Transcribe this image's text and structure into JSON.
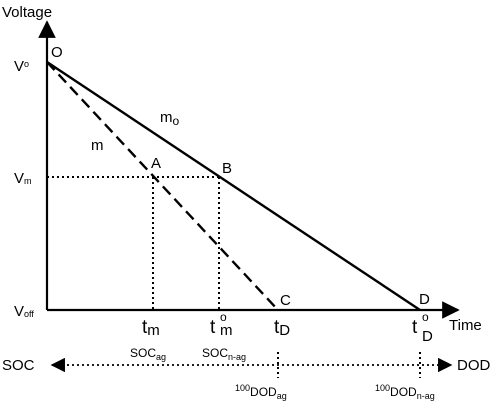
{
  "axes": {
    "y_label": "Voltage",
    "x_label": "Time"
  },
  "points": {
    "O": "O",
    "A": "A",
    "B": "B",
    "C": "C",
    "D": "D"
  },
  "y_ticks": {
    "vo_main": "V",
    "vo_sub": "o",
    "vm_main": "V",
    "vm_sub": "m",
    "voff_main": "V",
    "voff_sub": "off"
  },
  "slopes": {
    "mo_main": "m",
    "mo_sub": "o",
    "m": "m"
  },
  "x_ticks": {
    "tm_main": "t",
    "tm_sub": "m",
    "tmo_main": "t",
    "tmo_sup": "o",
    "tmo_sub": "m",
    "tD_main": "t",
    "tD_sub": "D",
    "tDo_main": "t",
    "tDo_sup": "o",
    "tDo_sub": "D"
  },
  "soc_labels": {
    "soc_ag_main": "SOC",
    "soc_ag_sub": "ag",
    "soc_nag_main": "SOC",
    "soc_nag_sub": "n-ag"
  },
  "bottom_axis": {
    "left": "SOC",
    "right": "DOD",
    "dod_ag_pre": "100",
    "dod_ag_main": "DOD",
    "dod_ag_sub": "ag",
    "dod_nag_pre": "100",
    "dod_nag_main": "DOD",
    "dod_nag_sub": "n-ag"
  }
}
